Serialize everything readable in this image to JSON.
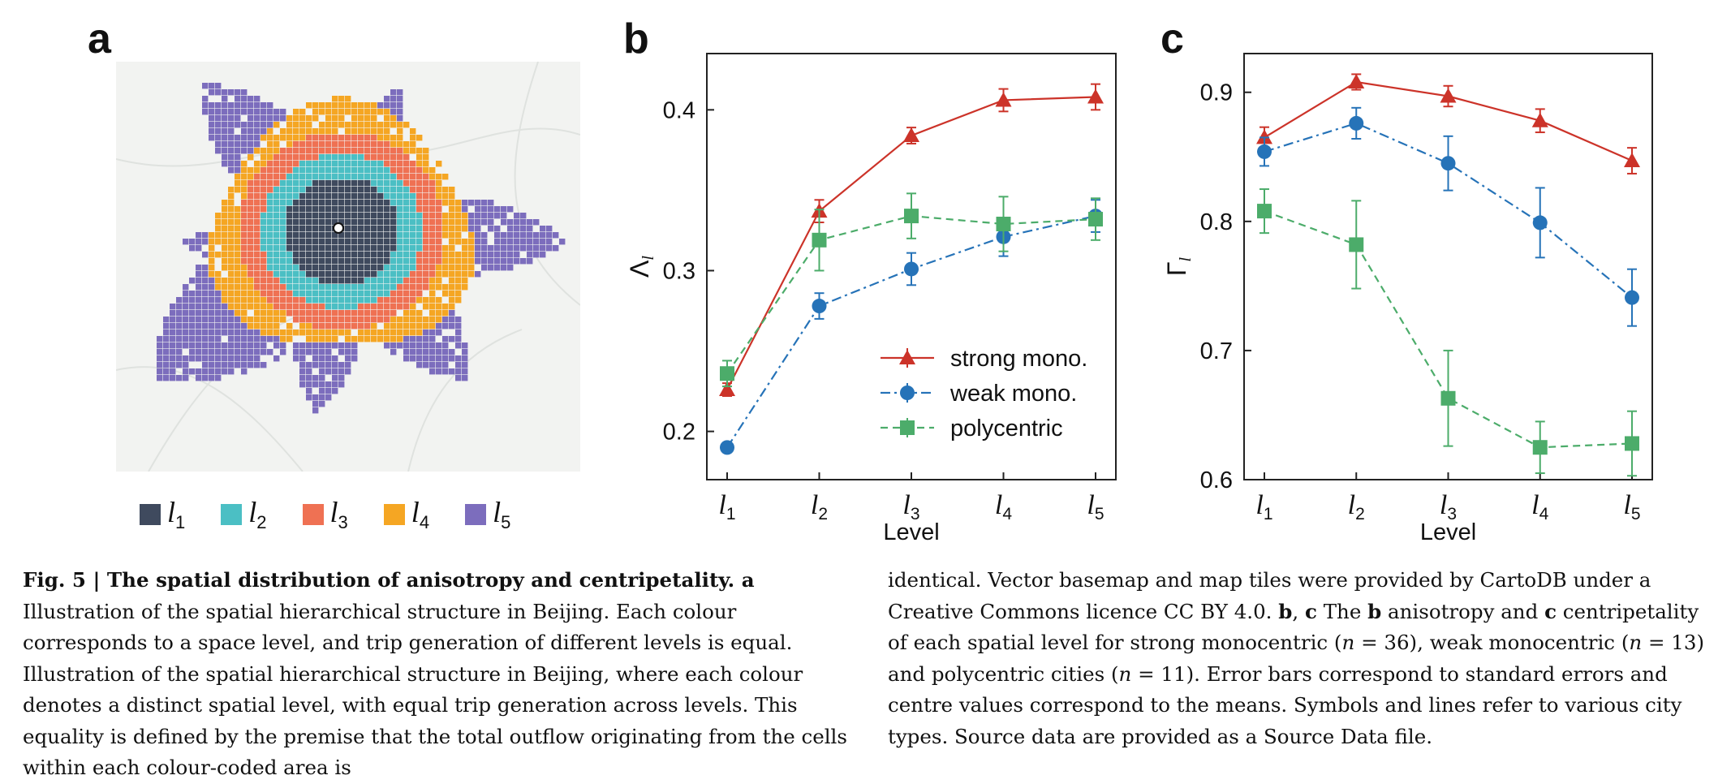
{
  "panels": {
    "a": "a",
    "b": "b",
    "c": "c"
  },
  "map": {
    "legend": [
      {
        "label": "l",
        "sub": "1",
        "color": "#3f4a5e"
      },
      {
        "label": "l",
        "sub": "2",
        "color": "#4bbfc4"
      },
      {
        "label": "l",
        "sub": "3",
        "color": "#ef7153"
      },
      {
        "label": "l",
        "sub": "4",
        "color": "#f5a623"
      },
      {
        "label": "l",
        "sub": "5",
        "color": "#7c6dbd"
      }
    ]
  },
  "chart_data": [
    {
      "type": "line",
      "panel": "b",
      "xlabel": "Level",
      "ylabel": "Λ",
      "ylabel_sub": "l",
      "categories": [
        "1",
        "2",
        "3",
        "4",
        "5"
      ],
      "category_symbol": "l",
      "ylim": [
        0.17,
        0.435
      ],
      "yticks": [
        "0.2",
        "0.3",
        "0.4"
      ],
      "ytick_values": [
        0.2,
        0.3,
        0.4
      ],
      "legend_position": "bottom-right",
      "series": [
        {
          "name": "strong mono.",
          "color": "#cc3329",
          "marker": "triangle",
          "dash": "solid",
          "values": [
            0.226,
            0.337,
            0.384,
            0.406,
            0.408
          ],
          "errors": [
            0.004,
            0.007,
            0.005,
            0.007,
            0.008
          ]
        },
        {
          "name": "weak mono.",
          "color": "#2673b8",
          "marker": "circle",
          "dash": "dashdot",
          "values": [
            0.19,
            0.278,
            0.301,
            0.321,
            0.334
          ],
          "errors": [
            0.003,
            0.008,
            0.01,
            0.012,
            0.01
          ]
        },
        {
          "name": "polycentric",
          "color": "#4cac6a",
          "marker": "square",
          "dash": "dashed",
          "values": [
            0.236,
            0.319,
            0.334,
            0.329,
            0.332
          ],
          "errors": [
            0.008,
            0.019,
            0.014,
            0.017,
            0.013
          ]
        }
      ]
    },
    {
      "type": "line",
      "panel": "c",
      "xlabel": "Level",
      "ylabel": "Γ",
      "ylabel_sub": "l",
      "categories": [
        "1",
        "2",
        "3",
        "4",
        "5"
      ],
      "category_symbol": "l",
      "ylim": [
        0.6,
        0.93
      ],
      "yticks": [
        "0.6",
        "0.7",
        "0.8",
        "0.9"
      ],
      "ytick_values": [
        0.6,
        0.7,
        0.8,
        0.9
      ],
      "series": [
        {
          "name": "strong mono.",
          "color": "#cc3329",
          "marker": "triangle",
          "dash": "solid",
          "values": [
            0.865,
            0.908,
            0.897,
            0.878,
            0.847
          ],
          "errors": [
            0.008,
            0.006,
            0.008,
            0.009,
            0.01
          ]
        },
        {
          "name": "weak mono.",
          "color": "#2673b8",
          "marker": "circle",
          "dash": "dashdot",
          "values": [
            0.854,
            0.876,
            0.845,
            0.799,
            0.741
          ],
          "errors": [
            0.011,
            0.012,
            0.021,
            0.027,
            0.022
          ]
        },
        {
          "name": "polycentric",
          "color": "#4cac6a",
          "marker": "square",
          "dash": "dashed",
          "values": [
            0.808,
            0.782,
            0.663,
            0.625,
            0.628
          ],
          "errors": [
            0.017,
            0.034,
            0.037,
            0.02,
            0.025
          ]
        }
      ]
    }
  ],
  "caption": {
    "left": [
      {
        "t": "Fig. 5 | The spatial distribution of anisotropy and centripetality. ",
        "s": "bold"
      },
      {
        "t": "a",
        "s": "bold"
      },
      {
        "t": " Illustration of the spatial hierarchical structure in Beijing. Each colour corresponds to a space level, and trip generation of different levels is equal. Illustration of the spatial hierarchical structure in Beijing, where each colour denotes a distinct spatial level, with equal trip generation across levels. This equality is defined by the premise that the total outflow originating from the cells within each colour-coded area is",
        "s": ""
      }
    ],
    "right": [
      {
        "t": "identical. Vector basemap and map tiles were provided by CartoDB under a Creative Commons licence CC BY 4.0. ",
        "s": ""
      },
      {
        "t": "b",
        "s": "bold"
      },
      {
        "t": ", ",
        "s": ""
      },
      {
        "t": "c",
        "s": "bold"
      },
      {
        "t": " The ",
        "s": ""
      },
      {
        "t": "b",
        "s": "bold"
      },
      {
        "t": " anisotropy and ",
        "s": ""
      },
      {
        "t": "c",
        "s": "bold"
      },
      {
        "t": " centripetality of each spatial level for strong monocentric (",
        "s": ""
      },
      {
        "t": "n",
        "s": "italic"
      },
      {
        "t": " = 36), weak monocentric (",
        "s": ""
      },
      {
        "t": "n",
        "s": "italic"
      },
      {
        "t": " = 13) and polycentric cities (",
        "s": ""
      },
      {
        "t": "n",
        "s": "italic"
      },
      {
        "t": " = 11). Error bars correspond to standard errors and centre values correspond to the means. Symbols and lines refer to various city types. Source data are provided as a Source Data file.",
        "s": ""
      }
    ]
  }
}
